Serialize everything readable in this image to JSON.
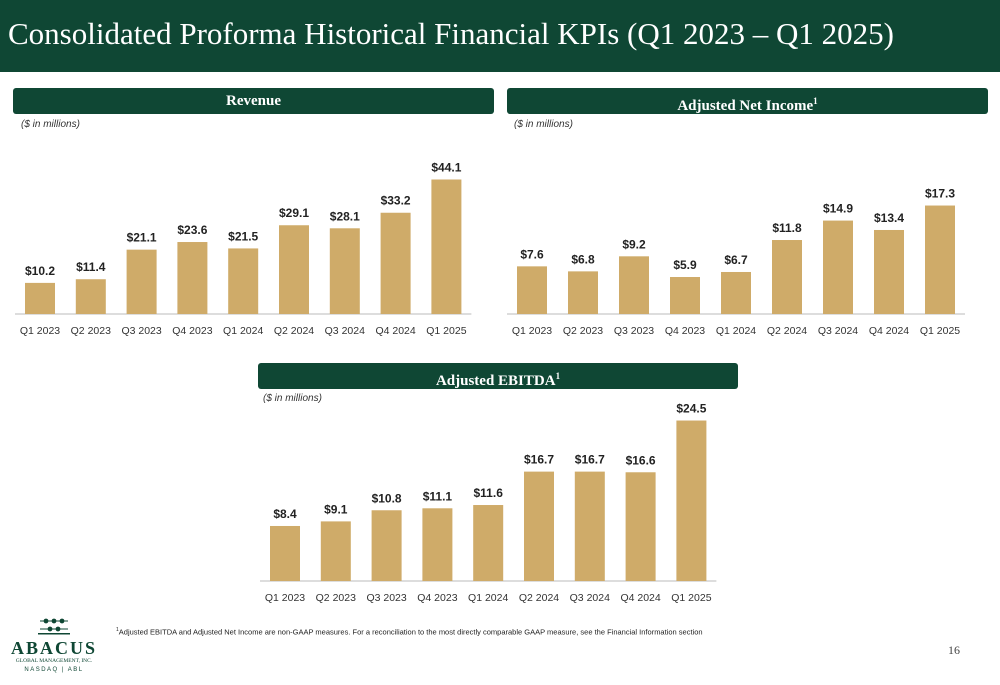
{
  "page": {
    "title": "Consolidated Proforma Historical Financial KPIs (Q1 2023 – Q1 2025)",
    "page_number": "16",
    "footnote_marker": "1",
    "footnote": "Adjusted EBITDA and Adjusted Net Income are non-GAAP measures. For a reconciliation to the most directly comparable GAAP measure, see the Financial Information section",
    "logo": {
      "name": "ABACUS",
      "subtitle": "GLOBAL MANAGEMENT, INC.",
      "exchange": "NASDAQ | ABL"
    }
  },
  "colors": {
    "header": "#0f4734",
    "bar": "#cfab69",
    "axis": "#bbbbbb"
  },
  "chart_data": [
    {
      "type": "bar",
      "title": "Revenue",
      "unit_note": "($ in millions)",
      "categories": [
        "Q1 2023",
        "Q2 2023",
        "Q3 2023",
        "Q4 2023",
        "Q1 2024",
        "Q2 2024",
        "Q3 2024",
        "Q4 2024",
        "Q1 2025"
      ],
      "values": [
        10.2,
        11.4,
        21.1,
        23.6,
        21.5,
        29.1,
        28.1,
        33.2,
        44.1
      ],
      "labels": [
        "$10.2",
        "$11.4",
        "$21.1",
        "$23.6",
        "$21.5",
        "$29.1",
        "$28.1",
        "$33.2",
        "$44.1"
      ]
    },
    {
      "type": "bar",
      "title": "Adjusted Net Income",
      "title_sup": "1",
      "unit_note": "($ in millions)",
      "categories": [
        "Q1 2023",
        "Q2 2023",
        "Q3 2023",
        "Q4 2023",
        "Q1 2024",
        "Q2 2024",
        "Q3 2024",
        "Q4 2024",
        "Q1 2025"
      ],
      "values": [
        7.6,
        6.8,
        9.2,
        5.9,
        6.7,
        11.8,
        14.9,
        13.4,
        17.3
      ],
      "labels": [
        "$7.6",
        "$6.8",
        "$9.2",
        "$5.9",
        "$6.7",
        "$11.8",
        "$14.9",
        "$13.4",
        "$17.3"
      ]
    },
    {
      "type": "bar",
      "title": "Adjusted EBITDA",
      "title_sup": "1",
      "unit_note": "($ in millions)",
      "categories": [
        "Q1 2023",
        "Q2 2023",
        "Q3 2023",
        "Q4 2023",
        "Q1 2024",
        "Q2 2024",
        "Q3 2024",
        "Q4 2024",
        "Q1 2025"
      ],
      "values": [
        8.4,
        9.1,
        10.8,
        11.1,
        11.6,
        16.7,
        16.7,
        16.6,
        24.5
      ],
      "labels": [
        "$8.4",
        "$9.1",
        "$10.8",
        "$11.1",
        "$11.6",
        "$16.7",
        "$16.7",
        "$16.6",
        "$24.5"
      ]
    }
  ]
}
